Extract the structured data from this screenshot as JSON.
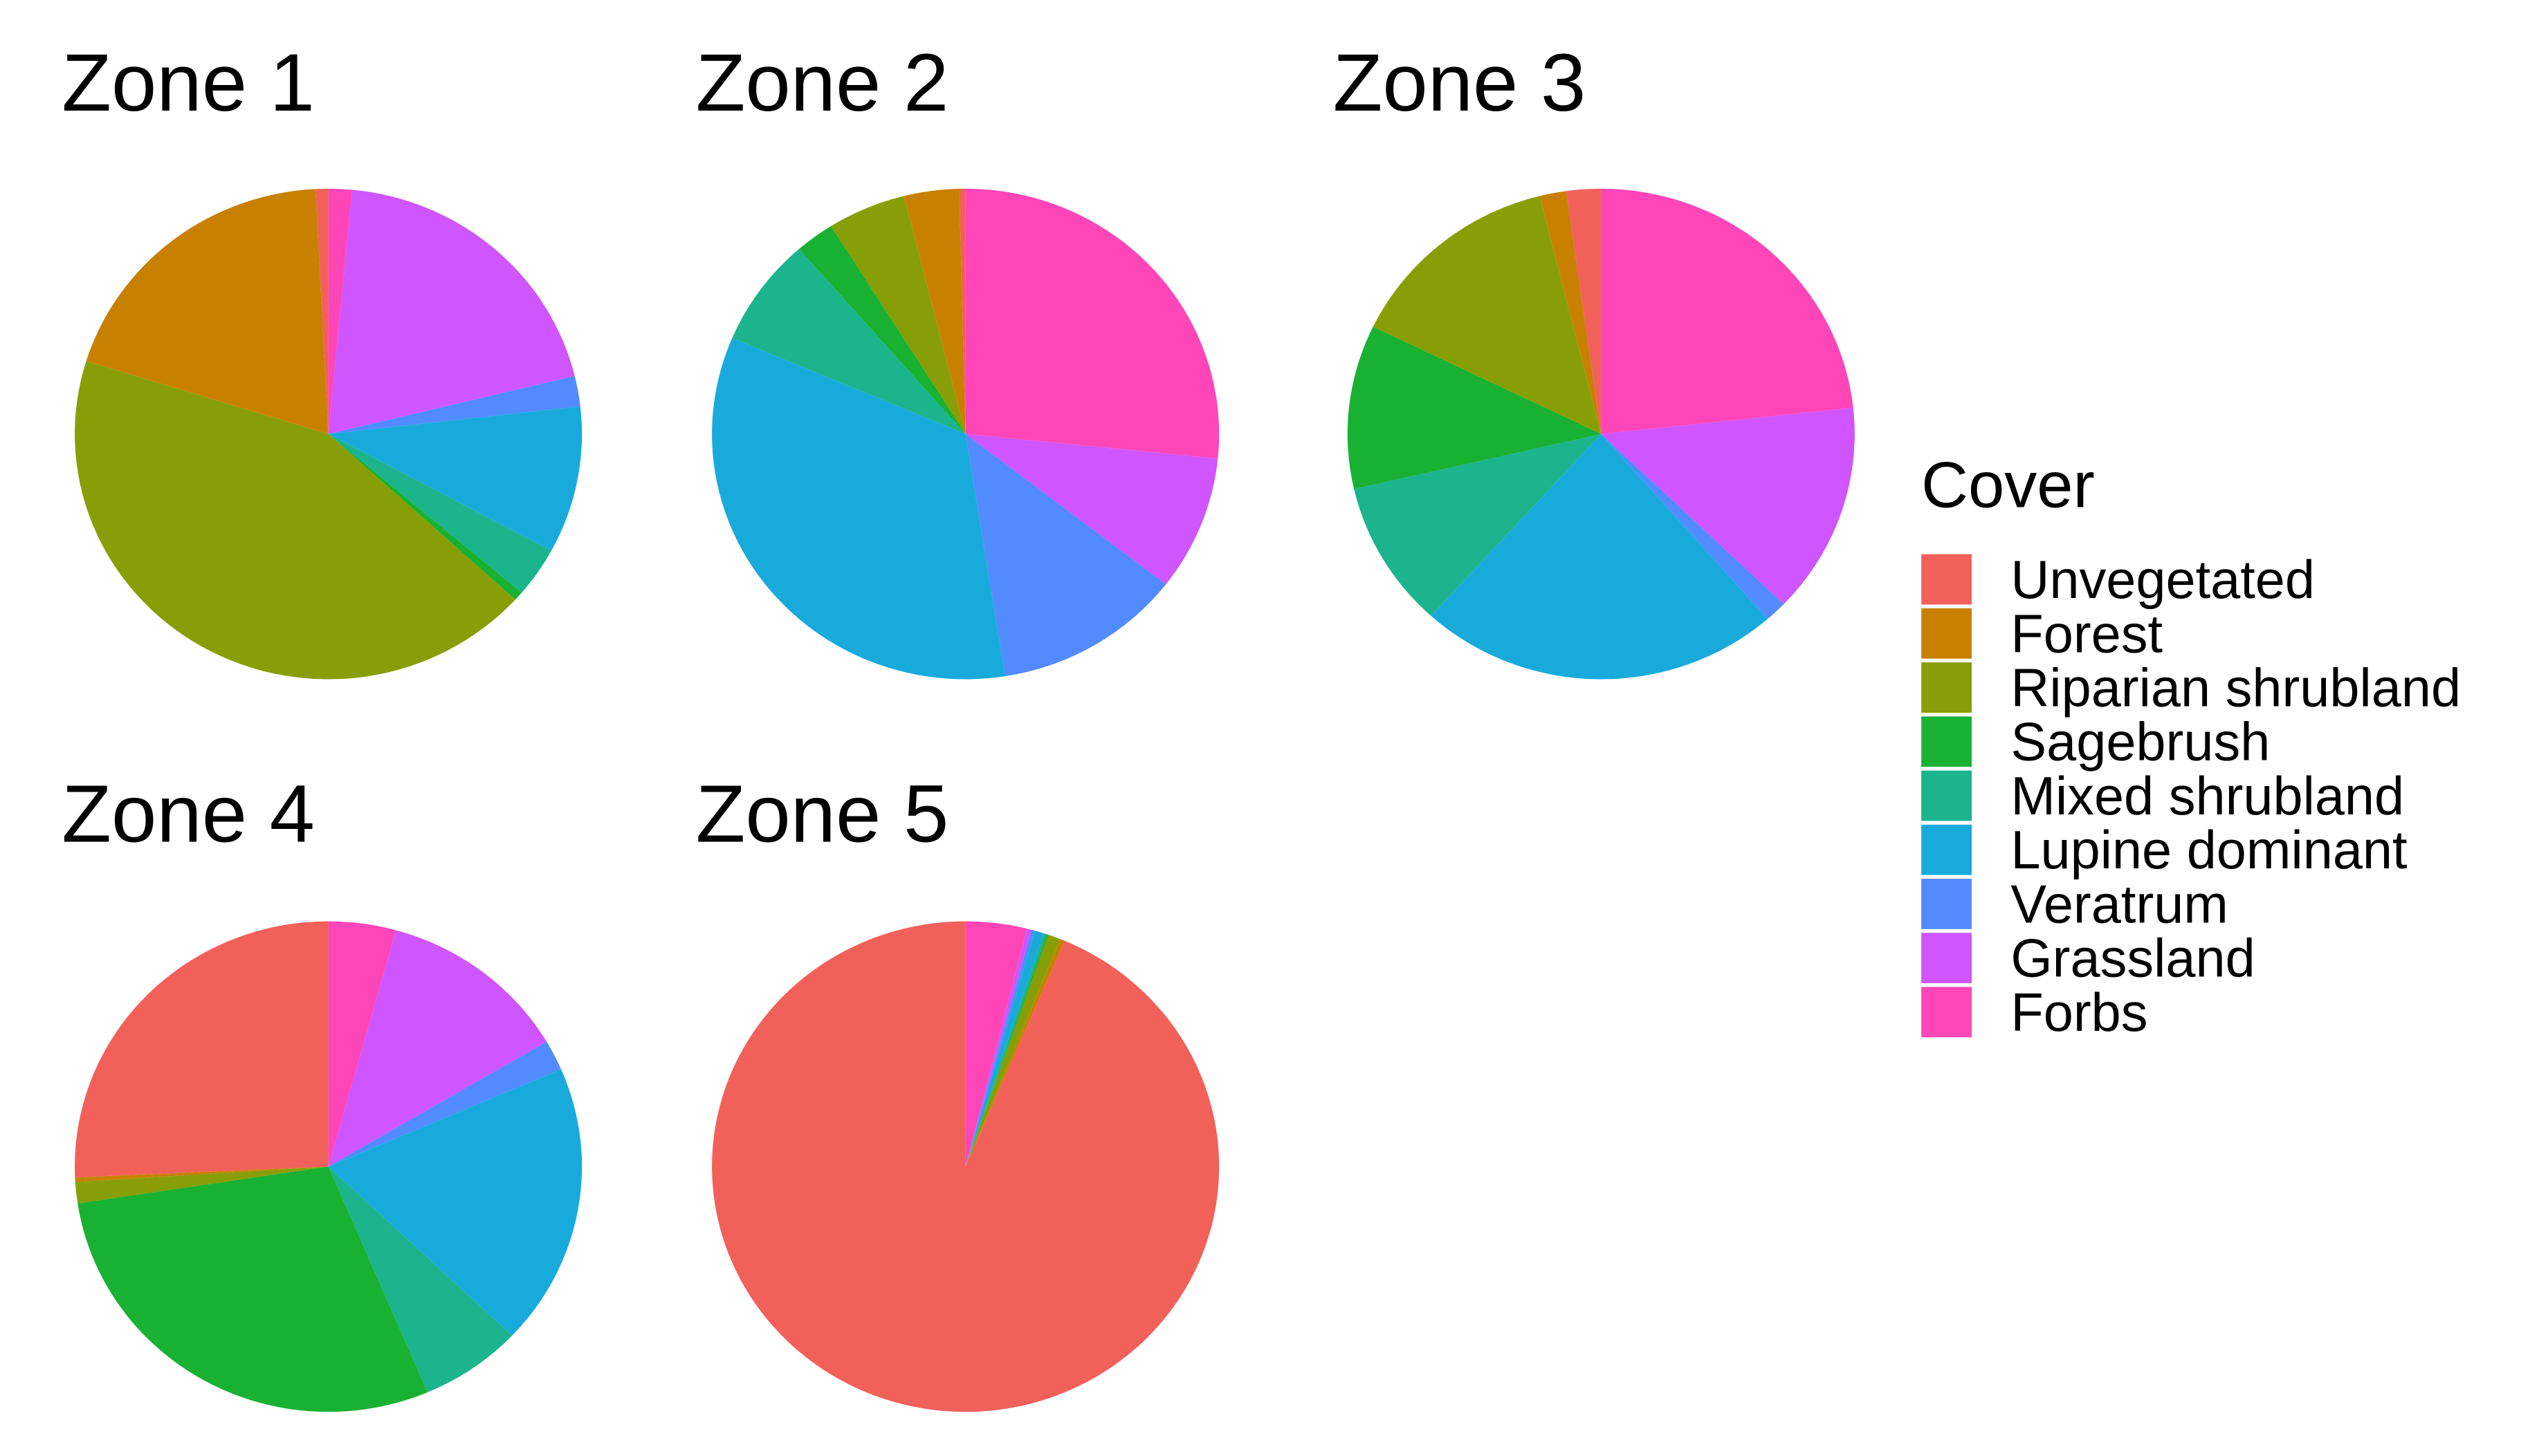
{
  "chart_data": [
    {
      "type": "pie",
      "title": "Zone 1",
      "categories": [
        "Unvegetated",
        "Forest",
        "Riparian shrubland",
        "Sagebrush",
        "Mixed shrubland",
        "Lupine dominant",
        "Veratrum",
        "Grassland",
        "Forbs"
      ],
      "colors": [
        "#F2605A",
        "#C88000",
        "#889E06",
        "#18B132",
        "#1BB48C",
        "#19AADC",
        "#528AFF",
        "#CE55FF",
        "#FF46B8"
      ],
      "values": [
        0.8,
        19.4,
        43,
        0.6,
        3.3,
        9.7,
        2,
        19.7,
        1.5
      ]
    },
    {
      "type": "pie",
      "title": "Zone 2",
      "categories": [
        "Unvegetated",
        "Forest",
        "Riparian shrubland",
        "Sagebrush",
        "Mixed shrubland",
        "Lupine dominant",
        "Veratrum",
        "Grassland",
        "Forbs"
      ],
      "colors": [
        "#F2605A",
        "#C88000",
        "#889E06",
        "#18B132",
        "#1BB48C",
        "#19AADC",
        "#528AFF",
        "#CE55FF",
        "#FF46B8"
      ],
      "values": [
        0.4,
        3.5,
        5,
        2.5,
        7.2,
        33.9,
        12,
        8.9,
        26.6
      ]
    },
    {
      "type": "pie",
      "title": "Zone 3",
      "categories": [
        "Unvegetated",
        "Forest",
        "Riparian shrubland",
        "Sagebrush",
        "Mixed shrubland",
        "Lupine dominant",
        "Veratrum",
        "Grassland",
        "Forbs"
      ],
      "colors": [
        "#F2605A",
        "#C88000",
        "#889E06",
        "#18B132",
        "#1BB48C",
        "#19AADC",
        "#528AFF",
        "#CE55FF",
        "#FF46B8"
      ],
      "values": [
        2.2,
        1.7,
        13.9,
        10.8,
        9.7,
        23.1,
        1.4,
        13.9,
        23.3
      ]
    },
    {
      "type": "pie",
      "title": "Zone 4",
      "categories": [
        "Unvegetated",
        "Forest",
        "Riparian shrubland",
        "Sagebrush",
        "Mixed shrubland",
        "Lupine dominant",
        "Veratrum",
        "Grassland",
        "Forbs"
      ],
      "colors": [
        "#F2605A",
        "#C88000",
        "#889E06",
        "#18B132",
        "#1BB48C",
        "#19AADC",
        "#528AFF",
        "#CE55FF",
        "#FF46B8"
      ],
      "values": [
        25.7,
        0.3,
        1.4,
        29,
        6.5,
        18.6,
        2,
        12.2,
        4.3
      ]
    },
    {
      "type": "pie",
      "title": "Zone 5",
      "categories": [
        "Unvegetated",
        "Forest",
        "Riparian shrubland",
        "Sagebrush",
        "Mixed shrubland",
        "Lupine dominant",
        "Veratrum",
        "Grassland",
        "Forbs"
      ],
      "colors": [
        "#F2605A",
        "#C88000",
        "#889E06",
        "#18B132",
        "#1BB48C",
        "#19AADC",
        "#528AFF",
        "#CE55FF",
        "#FF46B8"
      ],
      "values": [
        93.6,
        0.3,
        0.8,
        0.1,
        0.2,
        0.6,
        0.2,
        0.3,
        3.9
      ]
    }
  ],
  "legend": {
    "title": "Cover"
  }
}
